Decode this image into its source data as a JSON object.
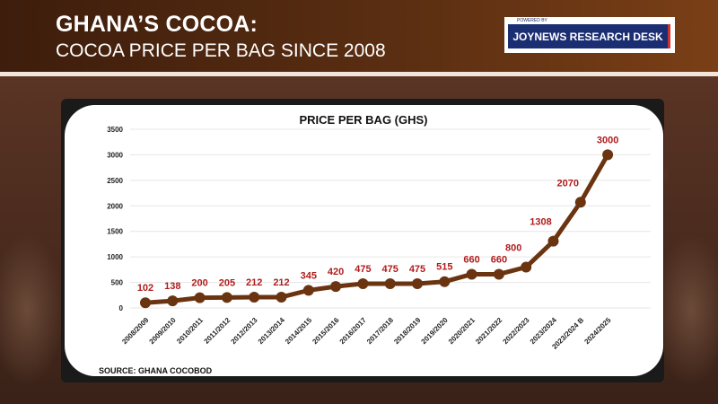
{
  "header": {
    "title": "GHANA’S COCOA:",
    "subtitle": "COCOA PRICE PER BAG SINCE 2008",
    "badge_powered": "POWERED BY",
    "badge_name": "JOYNEWS RESEARCH DESK"
  },
  "source": "SOURCE: GHANA COCOBOD",
  "colors": {
    "line": "#6b3410",
    "labels": "#b01c1c"
  },
  "chart_data": {
    "type": "line",
    "title": "PRICE PER BAG (GHS)",
    "categories": [
      "2008/2009",
      "2009/2010",
      "2010/2011",
      "2011/2012",
      "2012/2013",
      "2013/2014",
      "2014/2015",
      "2015/2016",
      "2016/2017",
      "2017/2018",
      "2018/2019",
      "2019/2020",
      "2020/2021",
      "2021/2022",
      "2022/2023",
      "2023/2024",
      "2023/2024 B",
      "2024/2025"
    ],
    "values": [
      102,
      138,
      200,
      205,
      212,
      212,
      345,
      420,
      475,
      475,
      475,
      515,
      660,
      660,
      800,
      1308,
      2070,
      3000
    ],
    "yticks": [
      0,
      500,
      1000,
      1500,
      2000,
      2500,
      3000,
      3500
    ],
    "ylim": [
      0,
      3500
    ],
    "xlabel": "",
    "ylabel": "",
    "grid": true,
    "legend": "none"
  }
}
